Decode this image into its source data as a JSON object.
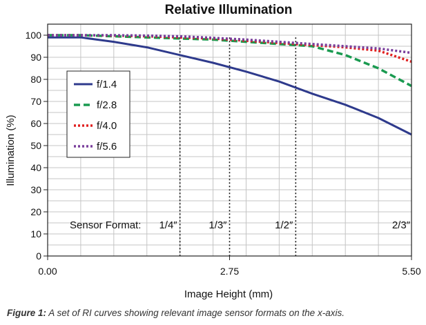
{
  "chart_data": {
    "type": "line",
    "title": "Relative Illumination",
    "xlabel": "Image Height (mm)",
    "ylabel": "Illumination (%)",
    "xlim": [
      0,
      5.5
    ],
    "ylim": [
      0,
      105
    ],
    "x_ticks": [
      "0.00",
      "2.75",
      "5.50"
    ],
    "y_ticks": [
      0,
      10,
      20,
      30,
      40,
      50,
      60,
      70,
      80,
      90,
      100
    ],
    "grid": true,
    "legend_position": "left",
    "series": [
      {
        "name": "f/1.4",
        "color": "#2e3a8c",
        "style": "solid",
        "x": [
          0,
          0.5,
          1.0,
          1.5,
          2.0,
          2.5,
          3.0,
          3.5,
          4.0,
          4.5,
          5.0,
          5.5
        ],
        "y": [
          99,
          99,
          97,
          94.5,
          91,
          87.5,
          83.5,
          79,
          73.5,
          68.5,
          62.5,
          55
        ]
      },
      {
        "name": "f/2.8",
        "color": "#1a9a50",
        "style": "dashed",
        "x": [
          0,
          0.5,
          1.0,
          1.5,
          2.0,
          2.5,
          3.0,
          3.5,
          4.0,
          4.5,
          5.0,
          5.5
        ],
        "y": [
          100,
          100,
          99.5,
          99,
          98.5,
          98,
          97,
          96,
          95,
          91,
          85,
          77
        ]
      },
      {
        "name": "f/4.0",
        "color": "#e02020",
        "style": "dotted",
        "x": [
          0,
          0.5,
          1.0,
          1.5,
          2.0,
          2.5,
          3.0,
          3.5,
          4.0,
          4.5,
          5.0,
          5.5
        ],
        "y": [
          100,
          100,
          99.8,
          99.5,
          99,
          98.5,
          97.5,
          96.5,
          95.5,
          94.5,
          93,
          88
        ]
      },
      {
        "name": "f/5.6",
        "color": "#7a3f9c",
        "style": "dotted",
        "x": [
          0,
          0.5,
          1.0,
          1.5,
          2.0,
          2.5,
          3.0,
          3.5,
          4.0,
          4.5,
          5.0,
          5.5
        ],
        "y": [
          100,
          100,
          100,
          99.8,
          99.5,
          98.8,
          98,
          97,
          96,
          95,
          94,
          92
        ]
      }
    ],
    "annotations": {
      "sensor_label": "Sensor Format:",
      "formats": [
        {
          "label": "1/4″",
          "x": 2.0
        },
        {
          "label": "1/3″",
          "x": 2.75
        },
        {
          "label": "1/2″",
          "x": 3.75
        },
        {
          "label": "2/3″",
          "x": 5.5
        }
      ]
    }
  },
  "caption": {
    "prefix": "Figure 1:",
    "text": " A set of RI curves showing relevant image sensor formats on the x-axis."
  }
}
